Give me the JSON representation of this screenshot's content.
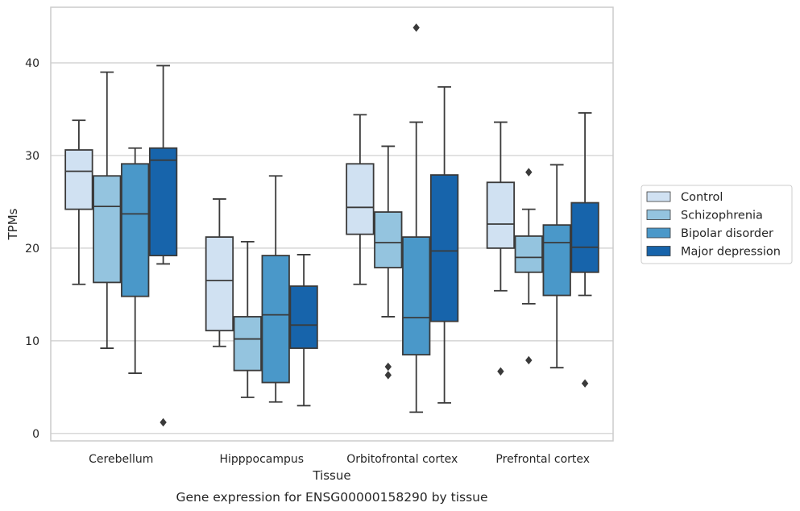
{
  "caption": "Gene expression for ENSG00000158290 by tissue",
  "chart_data": {
    "type": "box",
    "xlabel": "Tissue",
    "ylabel": "TPMs",
    "ylim": [
      -0.8,
      46
    ],
    "yticks": [
      0,
      10,
      20,
      30,
      40
    ],
    "grid": "horizontal",
    "legend_position": "right",
    "categories": [
      "Cerebellum",
      "Hipppocampus",
      "Orbitofrontal cortex",
      "Prefrontal cortex"
    ],
    "series": [
      {
        "name": "Control",
        "color": "#d0e1f2",
        "boxes": [
          {
            "whislo": 16.1,
            "q1": 24.2,
            "med": 28.3,
            "q3": 30.6,
            "whishi": 33.8,
            "fliers": []
          },
          {
            "whislo": 9.4,
            "q1": 11.1,
            "med": 16.5,
            "q3": 21.2,
            "whishi": 25.3,
            "fliers": []
          },
          {
            "whislo": 16.1,
            "q1": 21.5,
            "med": 24.4,
            "q3": 29.1,
            "whishi": 34.4,
            "fliers": []
          },
          {
            "whislo": 15.4,
            "q1": 20.0,
            "med": 22.6,
            "q3": 27.1,
            "whishi": 33.6,
            "fliers": [
              6.7
            ]
          }
        ]
      },
      {
        "name": "Schizophrenia",
        "color": "#94c4df",
        "boxes": [
          {
            "whislo": 9.2,
            "q1": 16.3,
            "med": 24.5,
            "q3": 27.8,
            "whishi": 39.0,
            "fliers": []
          },
          {
            "whislo": 3.9,
            "q1": 6.8,
            "med": 10.2,
            "q3": 12.6,
            "whishi": 20.7,
            "fliers": []
          },
          {
            "whislo": 12.6,
            "q1": 17.9,
            "med": 20.6,
            "q3": 23.9,
            "whishi": 31.0,
            "fliers": [
              7.2,
              6.3
            ]
          },
          {
            "whislo": 14.0,
            "q1": 17.4,
            "med": 19.0,
            "q3": 21.3,
            "whishi": 24.2,
            "fliers": [
              28.2,
              7.9
            ]
          }
        ]
      },
      {
        "name": "Bipolar disorder",
        "color": "#4a98c9",
        "boxes": [
          {
            "whislo": 6.5,
            "q1": 14.8,
            "med": 23.7,
            "q3": 29.1,
            "whishi": 30.8,
            "fliers": []
          },
          {
            "whislo": 3.4,
            "q1": 5.5,
            "med": 12.8,
            "q3": 19.2,
            "whishi": 27.8,
            "fliers": []
          },
          {
            "whislo": 2.3,
            "q1": 8.5,
            "med": 12.5,
            "q3": 21.2,
            "whishi": 33.6,
            "fliers": [
              43.8
            ]
          },
          {
            "whislo": 7.1,
            "q1": 14.9,
            "med": 20.6,
            "q3": 22.5,
            "whishi": 29.0,
            "fliers": []
          }
        ]
      },
      {
        "name": "Major depression",
        "color": "#1764ab",
        "boxes": [
          {
            "whislo": 18.3,
            "q1": 19.2,
            "med": 29.5,
            "q3": 30.8,
            "whishi": 39.7,
            "fliers": [
              1.2
            ]
          },
          {
            "whislo": 3.0,
            "q1": 9.2,
            "med": 11.7,
            "q3": 15.9,
            "whishi": 19.3,
            "fliers": []
          },
          {
            "whislo": 3.3,
            "q1": 12.1,
            "med": 19.7,
            "q3": 27.9,
            "whishi": 37.4,
            "fliers": []
          },
          {
            "whislo": 14.9,
            "q1": 17.4,
            "med": 20.1,
            "q3": 24.9,
            "whishi": 34.6,
            "fliers": [
              5.4
            ]
          }
        ]
      }
    ]
  }
}
